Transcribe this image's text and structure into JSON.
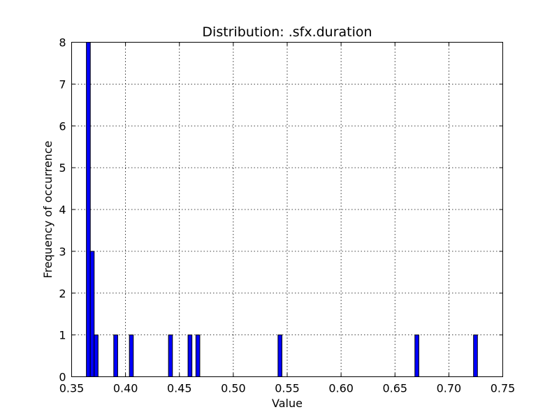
{
  "chart_data": {
    "type": "bar",
    "title": "Distribution: .sfx.duration",
    "xlabel": "Value",
    "ylabel": "Frequency of occurrence",
    "xlim": [
      0.35,
      0.75
    ],
    "ylim": [
      0,
      8
    ],
    "xticks": [
      "0.35",
      "0.40",
      "0.45",
      "0.50",
      "0.55",
      "0.60",
      "0.65",
      "0.70",
      "0.75"
    ],
    "yticks": [
      "0",
      "1",
      "2",
      "3",
      "4",
      "5",
      "6",
      "7",
      "8"
    ],
    "grid": true,
    "bin_width": 0.00363,
    "bins": [
      {
        "x": 0.3637,
        "count": 8
      },
      {
        "x": 0.3673,
        "count": 3
      },
      {
        "x": 0.3709,
        "count": 1
      },
      {
        "x": 0.3891,
        "count": 1
      },
      {
        "x": 0.4036,
        "count": 1
      },
      {
        "x": 0.4399,
        "count": 1
      },
      {
        "x": 0.458,
        "count": 1
      },
      {
        "x": 0.4653,
        "count": 1
      },
      {
        "x": 0.5415,
        "count": 1
      },
      {
        "x": 0.6685,
        "count": 1
      },
      {
        "x": 0.7229,
        "count": 1
      }
    ],
    "colors": {
      "bar": "#0000ff",
      "edge": "#000000"
    }
  }
}
